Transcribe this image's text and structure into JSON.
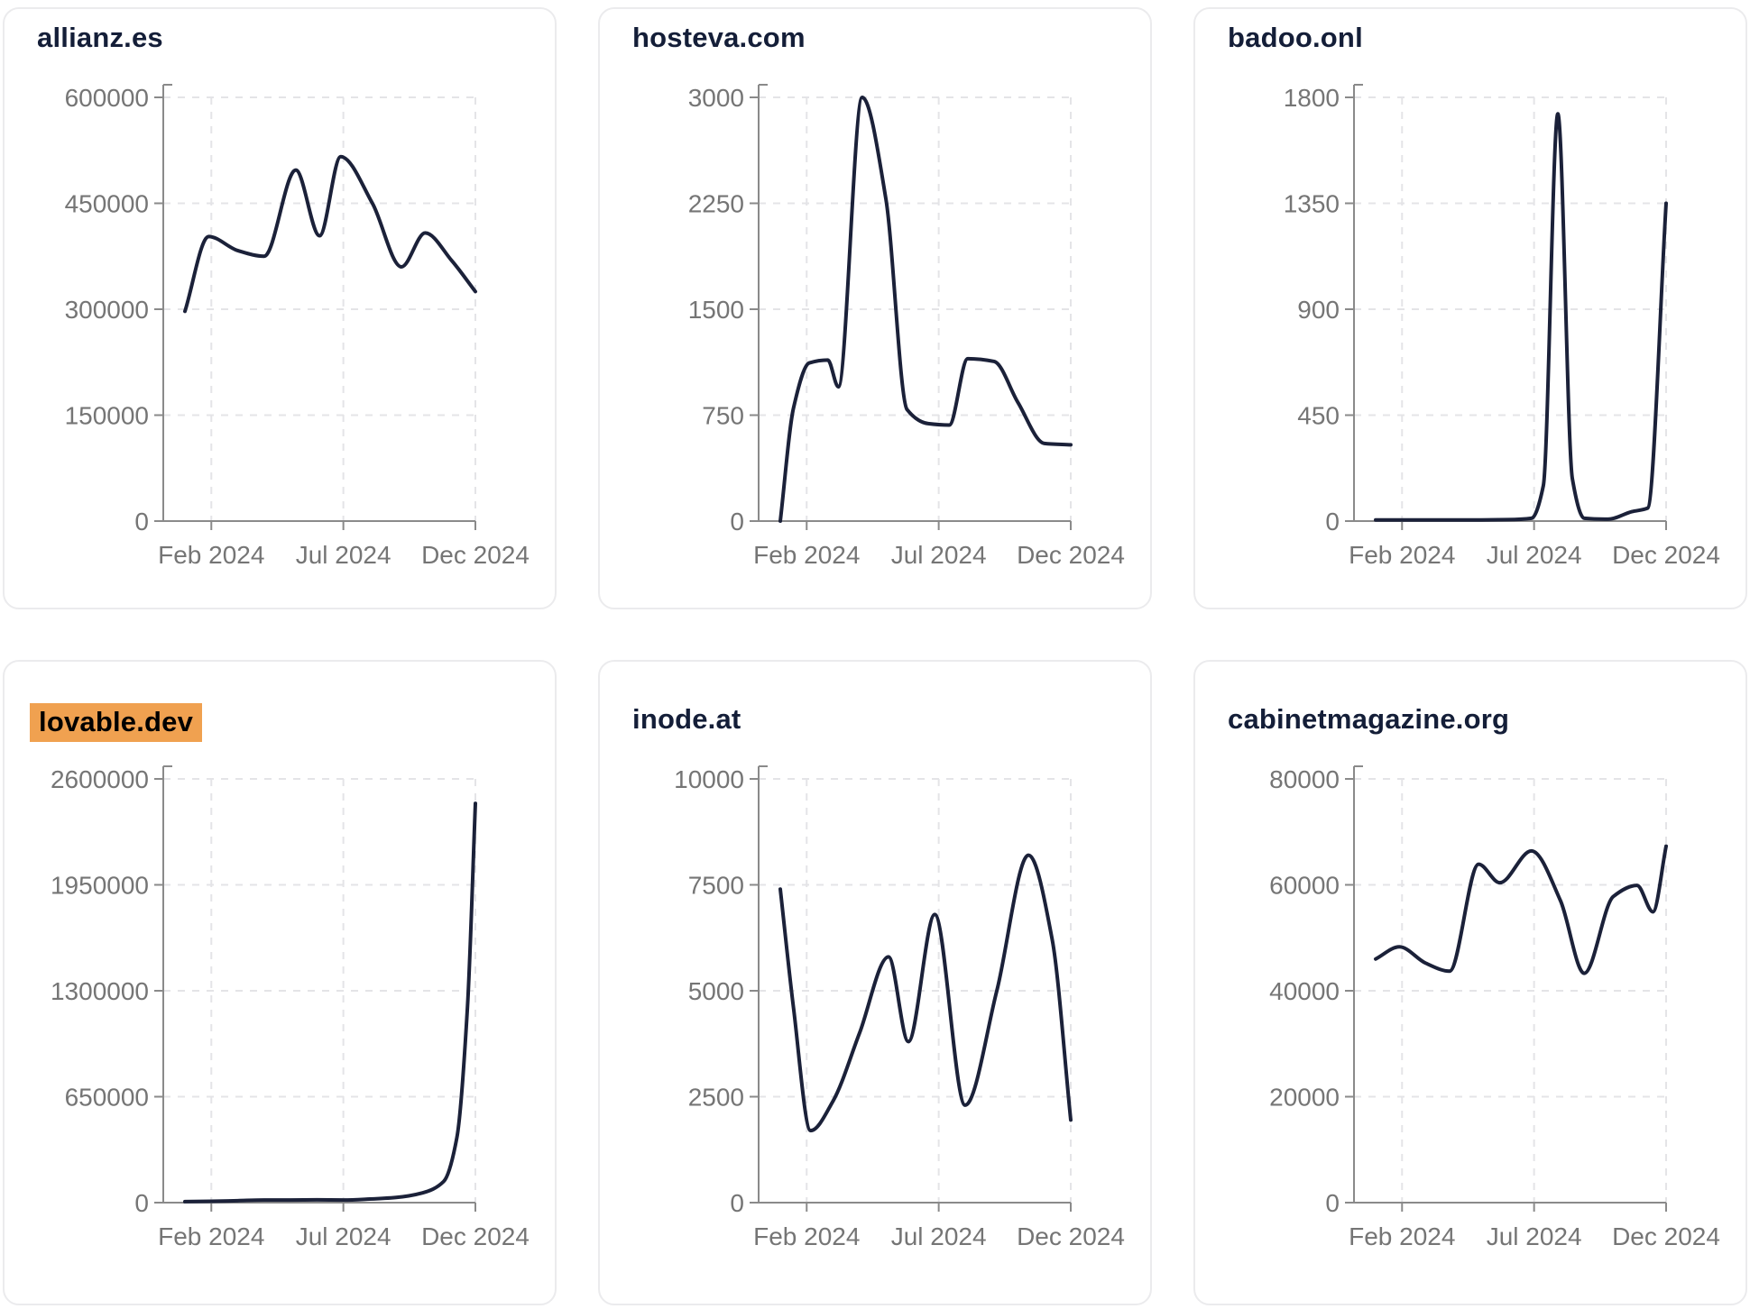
{
  "style": {
    "page_background": "#ffffff",
    "card_background": "#ffffff",
    "card_border_color": "#ebebed",
    "line_color": "#1b2139",
    "title_color": "#141e38",
    "highlight_background": "#f0a150",
    "highlight_text_color": "#000000",
    "axis_line_color": "#8a8a8a",
    "tick_label_color": "#757575",
    "grid_line_color": "#e4e4e7"
  },
  "x_axis": {
    "unit": "month_index_0_is_Jan_2024",
    "tick_months": [
      1,
      6,
      11
    ],
    "tick_labels": [
      "Feb 2024",
      "Jul 2024",
      "Dec 2024"
    ]
  },
  "chart_data": [
    {
      "type": "line",
      "title": "allianz.es",
      "title_highlighted": false,
      "ylim": [
        0,
        600000
      ],
      "yticks": [
        0,
        150000,
        300000,
        450000,
        600000
      ],
      "grid": true,
      "points": [
        [
          0,
          297000
        ],
        [
          0.9,
          403000
        ],
        [
          2.0,
          383000
        ],
        [
          3.0,
          375000
        ],
        [
          4.2,
          497000
        ],
        [
          5.1,
          404000
        ],
        [
          5.9,
          516000
        ],
        [
          7.1,
          450000
        ],
        [
          8.2,
          360000
        ],
        [
          9.1,
          408000
        ],
        [
          10.1,
          369000
        ],
        [
          11,
          325000
        ]
      ]
    },
    {
      "type": "line",
      "title": "hosteva.com",
      "title_highlighted": false,
      "ylim": [
        0,
        3000
      ],
      "yticks": [
        0,
        750,
        1500,
        2250,
        3000
      ],
      "grid": true,
      "points": [
        [
          0,
          0
        ],
        [
          0.5,
          800
        ],
        [
          1.1,
          1120
        ],
        [
          1.8,
          1140
        ],
        [
          2.2,
          950
        ],
        [
          3.1,
          3000
        ],
        [
          4.0,
          2280
        ],
        [
          4.8,
          790
        ],
        [
          5.6,
          690
        ],
        [
          6.4,
          680
        ],
        [
          7.1,
          1150
        ],
        [
          8.1,
          1130
        ],
        [
          9.0,
          840
        ],
        [
          10.0,
          550
        ],
        [
          11,
          540
        ]
      ]
    },
    {
      "type": "line",
      "title": "badoo.onl",
      "title_highlighted": false,
      "ylim": [
        0,
        1800
      ],
      "yticks": [
        0,
        450,
        900,
        1350,
        1800
      ],
      "grid": true,
      "points": [
        [
          0,
          5
        ],
        [
          1,
          5
        ],
        [
          2,
          5
        ],
        [
          3,
          5
        ],
        [
          4,
          5
        ],
        [
          5,
          6
        ],
        [
          5.9,
          12
        ],
        [
          6.35,
          150
        ],
        [
          6.9,
          1730
        ],
        [
          7.45,
          180
        ],
        [
          7.9,
          12
        ],
        [
          8.8,
          8
        ],
        [
          9.7,
          40
        ],
        [
          10.3,
          55
        ],
        [
          11,
          1350
        ]
      ]
    },
    {
      "type": "line",
      "title": "lovable.dev",
      "title_highlighted": true,
      "ylim": [
        0,
        2600000
      ],
      "yticks": [
        0,
        650000,
        1300000,
        1950000,
        2600000
      ],
      "grid": true,
      "points": [
        [
          0,
          6000
        ],
        [
          1,
          8000
        ],
        [
          2,
          12000
        ],
        [
          3,
          16000
        ],
        [
          4,
          16000
        ],
        [
          5,
          17000
        ],
        [
          6,
          16000
        ],
        [
          7,
          22000
        ],
        [
          8,
          32000
        ],
        [
          9,
          60000
        ],
        [
          9.8,
          130000
        ],
        [
          10.3,
          400000
        ],
        [
          10.7,
          1200000
        ],
        [
          11,
          2450000
        ]
      ]
    },
    {
      "type": "line",
      "title": "inode.at",
      "title_highlighted": false,
      "ylim": [
        0,
        10000
      ],
      "yticks": [
        0,
        2500,
        5000,
        7500,
        10000
      ],
      "grid": true,
      "points": [
        [
          0,
          7400
        ],
        [
          0.5,
          4600
        ],
        [
          1.15,
          1700
        ],
        [
          2,
          2400
        ],
        [
          3,
          4000
        ],
        [
          4.1,
          5800
        ],
        [
          4.85,
          3800
        ],
        [
          5.85,
          6800
        ],
        [
          7.0,
          2300
        ],
        [
          8.2,
          5000
        ],
        [
          9.4,
          8200
        ],
        [
          10.3,
          6200
        ],
        [
          11,
          1950
        ]
      ]
    },
    {
      "type": "line",
      "title": "cabinetmagazine.org",
      "title_highlighted": false,
      "ylim": [
        0,
        80000
      ],
      "yticks": [
        0,
        20000,
        40000,
        60000,
        80000
      ],
      "grid": true,
      "points": [
        [
          0,
          46000
        ],
        [
          0.9,
          48300
        ],
        [
          1.9,
          45200
        ],
        [
          2.8,
          43700
        ],
        [
          3.9,
          63900
        ],
        [
          4.7,
          60400
        ],
        [
          5.9,
          66400
        ],
        [
          7.0,
          57000
        ],
        [
          7.9,
          43300
        ],
        [
          9.0,
          57800
        ],
        [
          9.9,
          59900
        ],
        [
          10.5,
          54900
        ],
        [
          11,
          67300
        ]
      ]
    }
  ]
}
